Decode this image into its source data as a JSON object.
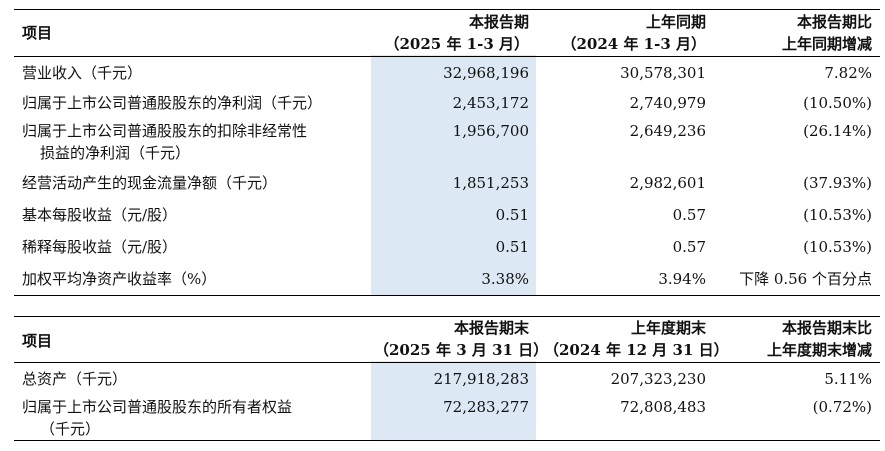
{
  "table1": {
    "header": {
      "item": "项目",
      "current": [
        "本报告期",
        "（2025 年 1-3 月）"
      ],
      "prior": [
        "上年同期",
        "（2024 年 1-3 月）"
      ],
      "change": [
        "本报告期比",
        "上年同期增减"
      ]
    },
    "rows": [
      {
        "label": [
          "营业收入（千元）"
        ],
        "current": "32,968,196",
        "prior": "30,578,301",
        "change": "7.82%"
      },
      {
        "label": [
          "归属于上市公司普通股股东的净利润（千元）"
        ],
        "current": "2,453,172",
        "prior": "2,740,979",
        "change": "(10.50%)"
      },
      {
        "label": [
          "归属于上市公司普通股股东的扣除非经常性",
          "损益的净利润（千元）"
        ],
        "current": "1,956,700",
        "prior": "2,649,236",
        "change": "(26.14%)"
      },
      {
        "label": [
          "经营活动产生的现金流量净额（千元）"
        ],
        "current": "1,851,253",
        "prior": "2,982,601",
        "change": "(37.93%)"
      },
      {
        "label": [
          "基本每股收益（元/股）"
        ],
        "current": "0.51",
        "prior": "0.57",
        "change": "(10.53%)"
      },
      {
        "label": [
          "稀释每股收益（元/股）"
        ],
        "current": "0.51",
        "prior": "0.57",
        "change": "(10.53%)"
      },
      {
        "label": [
          "加权平均净资产收益率（%）"
        ],
        "current": "3.38%",
        "prior": "3.94%",
        "change": "下降 0.56 个百分点"
      }
    ]
  },
  "table2": {
    "header": {
      "item": "项目",
      "current": [
        "本报告期末",
        "（2025 年 3 月 31 日）"
      ],
      "prior": [
        "上年度期末",
        "（2024 年 12 月 31 日）"
      ],
      "change": [
        "本报告期末比",
        "上年度期末增减"
      ]
    },
    "rows": [
      {
        "label": [
          "总资产（千元）"
        ],
        "current": "217,918,283",
        "prior": "207,323,230",
        "change": "5.11%"
      },
      {
        "label": [
          "归属于上市公司普通股股东的所有者权益",
          "（千元）"
        ],
        "current": "72,283,277",
        "prior": "72,808,483",
        "change": "(0.72%)"
      }
    ]
  }
}
